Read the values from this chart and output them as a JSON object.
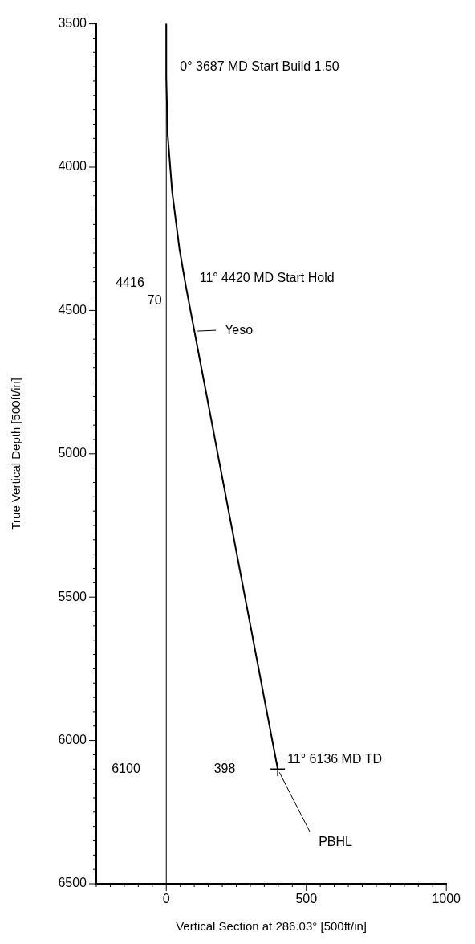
{
  "chart_data": {
    "type": "line",
    "xlabel": "Vertical Section at 286.03° [500ft/in]",
    "ylabel": "True Vertical Depth [500ft/in]",
    "xlim": [
      -250,
      1000
    ],
    "ylim": [
      6500,
      3500
    ],
    "xticks": [
      {
        "value": -250,
        "label": null
      },
      {
        "value": -200,
        "label": null
      },
      {
        "value": -150,
        "label": null
      },
      {
        "value": -100,
        "label": null
      },
      {
        "value": -50,
        "label": null
      },
      0,
      {
        "value": 50,
        "label": null
      },
      {
        "value": 100,
        "label": null
      },
      {
        "value": 150,
        "label": null
      },
      {
        "value": 200,
        "label": null
      },
      {
        "value": 250,
        "label": null
      },
      {
        "value": 300,
        "label": null
      },
      {
        "value": 350,
        "label": null
      },
      {
        "value": 400,
        "label": null
      },
      {
        "value": 450,
        "label": null
      },
      500,
      {
        "value": 550,
        "label": null
      },
      {
        "value": 600,
        "label": null
      },
      {
        "value": 650,
        "label": null
      },
      {
        "value": 700,
        "label": null
      },
      {
        "value": 750,
        "label": null
      },
      {
        "value": 800,
        "label": null
      },
      {
        "value": 850,
        "label": null
      },
      {
        "value": 900,
        "label": null
      },
      {
        "value": 950,
        "label": null
      },
      1000
    ],
    "yticks": [
      3500,
      {
        "value": 3550,
        "label": null
      },
      {
        "value": 3600,
        "label": null
      },
      {
        "value": 3650,
        "label": null
      },
      {
        "value": 3700,
        "label": null
      },
      {
        "value": 3750,
        "label": null
      },
      {
        "value": 3800,
        "label": null
      },
      {
        "value": 3850,
        "label": null
      },
      {
        "value": 3900,
        "label": null
      },
      {
        "value": 3950,
        "label": null
      },
      4000,
      {
        "value": 4050,
        "label": null
      },
      {
        "value": 4100,
        "label": null
      },
      {
        "value": 4150,
        "label": null
      },
      {
        "value": 4200,
        "label": null
      },
      {
        "value": 4250,
        "label": null
      },
      {
        "value": 4300,
        "label": null
      },
      {
        "value": 4350,
        "label": null
      },
      {
        "value": 4400,
        "label": null
      },
      {
        "value": 4450,
        "label": null
      },
      4500,
      {
        "value": 4550,
        "label": null
      },
      {
        "value": 4600,
        "label": null
      },
      {
        "value": 4650,
        "label": null
      },
      {
        "value": 4700,
        "label": null
      },
      {
        "value": 4750,
        "label": null
      },
      {
        "value": 4800,
        "label": null
      },
      {
        "value": 4850,
        "label": null
      },
      {
        "value": 4900,
        "label": null
      },
      {
        "value": 4950,
        "label": null
      },
      5000,
      {
        "value": 5050,
        "label": null
      },
      {
        "value": 5100,
        "label": null
      },
      {
        "value": 5150,
        "label": null
      },
      {
        "value": 5200,
        "label": null
      },
      {
        "value": 5250,
        "label": null
      },
      {
        "value": 5300,
        "label": null
      },
      {
        "value": 5350,
        "label": null
      },
      {
        "value": 5400,
        "label": null
      },
      {
        "value": 5450,
        "label": null
      },
      5500,
      {
        "value": 5550,
        "label": null
      },
      {
        "value": 5600,
        "label": null
      },
      {
        "value": 5650,
        "label": null
      },
      {
        "value": 5700,
        "label": null
      },
      {
        "value": 5750,
        "label": null
      },
      {
        "value": 5800,
        "label": null
      },
      {
        "value": 5850,
        "label": null
      },
      {
        "value": 5900,
        "label": null
      },
      {
        "value": 5950,
        "label": null
      },
      6000,
      {
        "value": 6050,
        "label": null
      },
      {
        "value": 6100,
        "label": null
      },
      {
        "value": 6150,
        "label": null
      },
      {
        "value": 6200,
        "label": null
      },
      {
        "value": 6250,
        "label": null
      },
      {
        "value": 6300,
        "label": null
      },
      {
        "value": 6350,
        "label": null
      },
      {
        "value": 6400,
        "label": null
      },
      {
        "value": 6450,
        "label": null
      },
      6500
    ],
    "series": [
      {
        "color": "#000000",
        "marker": "none",
        "x": [
          0,
          0,
          5,
          21,
          47,
          70,
          398
        ],
        "values": [
          3500,
          3687,
          3887,
          4086,
          4285,
          4416,
          6100
        ]
      },
      {
        "type": "scatter",
        "color": "#000000",
        "marker": "cross",
        "x": [
          398
        ],
        "values": [
          6100
        ]
      }
    ],
    "ref_lines": [
      {
        "axis": "x",
        "value": 0,
        "color": "#000000"
      }
    ],
    "annotations": [
      {
        "text": "0° 3687 MD Start Build 1.50",
        "x": 0,
        "y": 3687
      },
      {
        "text": "11° 4420 MD Start Hold",
        "x": 70,
        "y": 4416
      },
      "4416",
      {
        "text": "70",
        "x": 70,
        "y": 4416
      },
      {
        "text": "Yeso",
        "x": 100,
        "y": 4572
      },
      {
        "text": "11° 6136 MD TD",
        "x": 398,
        "y": 6100
      },
      "6100",
      "398",
      {
        "text": "PBHL",
        "x": 398,
        "y": 6100
      }
    ],
    "grid": false,
    "legend": false
  }
}
